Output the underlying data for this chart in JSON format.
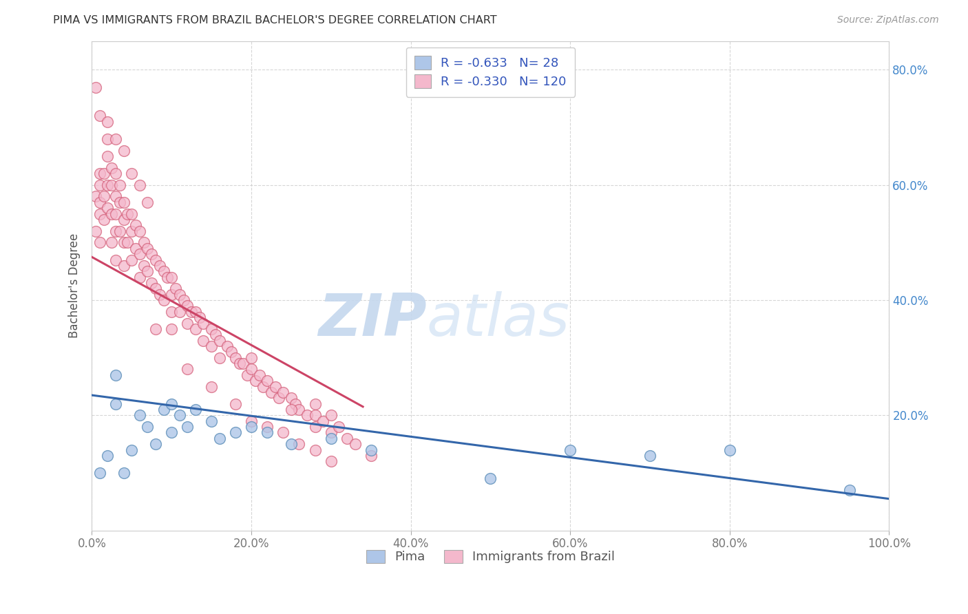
{
  "title": "PIMA VS IMMIGRANTS FROM BRAZIL BACHELOR'S DEGREE CORRELATION CHART",
  "source_text": "Source: ZipAtlas.com",
  "ylabel": "Bachelor's Degree",
  "xlim": [
    0.0,
    1.0
  ],
  "ylim": [
    0.0,
    0.85
  ],
  "x_ticks": [
    0.0,
    0.2,
    0.4,
    0.6,
    0.8,
    1.0
  ],
  "x_tick_labels": [
    "0.0%",
    "20.0%",
    "40.0%",
    "60.0%",
    "80.0%",
    "100.0%"
  ],
  "y_ticks": [
    0.2,
    0.4,
    0.6,
    0.8
  ],
  "y_tick_labels": [
    "20.0%",
    "40.0%",
    "60.0%",
    "80.0%"
  ],
  "legend_r_pima": "-0.633",
  "legend_n_pima": "28",
  "legend_r_brazil": "-0.330",
  "legend_n_brazil": "120",
  "pima_color": "#aec6e8",
  "pima_edge_color": "#5b8db8",
  "brazil_color": "#f4b8cc",
  "brazil_edge_color": "#d4607a",
  "pima_line_color": "#3366aa",
  "brazil_line_color": "#cc4466",
  "pima_scatter_x": [
    0.01,
    0.02,
    0.03,
    0.03,
    0.04,
    0.05,
    0.06,
    0.07,
    0.08,
    0.09,
    0.1,
    0.1,
    0.11,
    0.12,
    0.13,
    0.15,
    0.16,
    0.18,
    0.2,
    0.22,
    0.25,
    0.3,
    0.35,
    0.5,
    0.6,
    0.7,
    0.8,
    0.95
  ],
  "pima_scatter_y": [
    0.1,
    0.13,
    0.22,
    0.27,
    0.1,
    0.14,
    0.2,
    0.18,
    0.15,
    0.21,
    0.22,
    0.17,
    0.2,
    0.18,
    0.21,
    0.19,
    0.16,
    0.17,
    0.18,
    0.17,
    0.15,
    0.16,
    0.14,
    0.09,
    0.14,
    0.13,
    0.14,
    0.07
  ],
  "brazil_scatter_x": [
    0.005,
    0.005,
    0.01,
    0.01,
    0.01,
    0.01,
    0.01,
    0.015,
    0.015,
    0.015,
    0.02,
    0.02,
    0.02,
    0.02,
    0.025,
    0.025,
    0.025,
    0.025,
    0.03,
    0.03,
    0.03,
    0.03,
    0.03,
    0.035,
    0.035,
    0.035,
    0.04,
    0.04,
    0.04,
    0.04,
    0.045,
    0.045,
    0.05,
    0.05,
    0.05,
    0.055,
    0.055,
    0.06,
    0.06,
    0.06,
    0.065,
    0.065,
    0.07,
    0.07,
    0.075,
    0.075,
    0.08,
    0.08,
    0.085,
    0.085,
    0.09,
    0.09,
    0.095,
    0.1,
    0.1,
    0.1,
    0.1,
    0.105,
    0.11,
    0.11,
    0.115,
    0.12,
    0.12,
    0.125,
    0.13,
    0.13,
    0.135,
    0.14,
    0.14,
    0.15,
    0.15,
    0.155,
    0.16,
    0.16,
    0.17,
    0.175,
    0.18,
    0.185,
    0.19,
    0.195,
    0.2,
    0.205,
    0.21,
    0.215,
    0.22,
    0.225,
    0.23,
    0.235,
    0.24,
    0.25,
    0.255,
    0.26,
    0.27,
    0.28,
    0.28,
    0.28,
    0.29,
    0.3,
    0.3,
    0.31,
    0.32,
    0.33,
    0.35,
    0.08,
    0.12,
    0.15,
    0.18,
    0.2,
    0.22,
    0.24,
    0.26,
    0.28,
    0.3,
    0.2,
    0.25,
    0.005,
    0.01,
    0.02,
    0.03,
    0.04,
    0.05,
    0.06,
    0.07
  ],
  "brazil_scatter_y": [
    0.58,
    0.52,
    0.62,
    0.6,
    0.57,
    0.55,
    0.5,
    0.62,
    0.58,
    0.54,
    0.68,
    0.65,
    0.6,
    0.56,
    0.63,
    0.6,
    0.55,
    0.5,
    0.62,
    0.58,
    0.55,
    0.52,
    0.47,
    0.6,
    0.57,
    0.52,
    0.57,
    0.54,
    0.5,
    0.46,
    0.55,
    0.5,
    0.55,
    0.52,
    0.47,
    0.53,
    0.49,
    0.52,
    0.48,
    0.44,
    0.5,
    0.46,
    0.49,
    0.45,
    0.48,
    0.43,
    0.47,
    0.42,
    0.46,
    0.41,
    0.45,
    0.4,
    0.44,
    0.44,
    0.41,
    0.38,
    0.35,
    0.42,
    0.41,
    0.38,
    0.4,
    0.39,
    0.36,
    0.38,
    0.38,
    0.35,
    0.37,
    0.36,
    0.33,
    0.35,
    0.32,
    0.34,
    0.33,
    0.3,
    0.32,
    0.31,
    0.3,
    0.29,
    0.29,
    0.27,
    0.28,
    0.26,
    0.27,
    0.25,
    0.26,
    0.24,
    0.25,
    0.23,
    0.24,
    0.23,
    0.22,
    0.21,
    0.2,
    0.22,
    0.2,
    0.18,
    0.19,
    0.2,
    0.17,
    0.18,
    0.16,
    0.15,
    0.13,
    0.35,
    0.28,
    0.25,
    0.22,
    0.19,
    0.18,
    0.17,
    0.15,
    0.14,
    0.12,
    0.3,
    0.21,
    0.77,
    0.72,
    0.71,
    0.68,
    0.66,
    0.62,
    0.6,
    0.57
  ],
  "brazil_line_x": [
    0.0,
    0.34
  ],
  "brazil_line_y": [
    0.475,
    0.215
  ],
  "pima_line_x": [
    0.0,
    1.0
  ],
  "pima_line_y": [
    0.235,
    0.055
  ]
}
